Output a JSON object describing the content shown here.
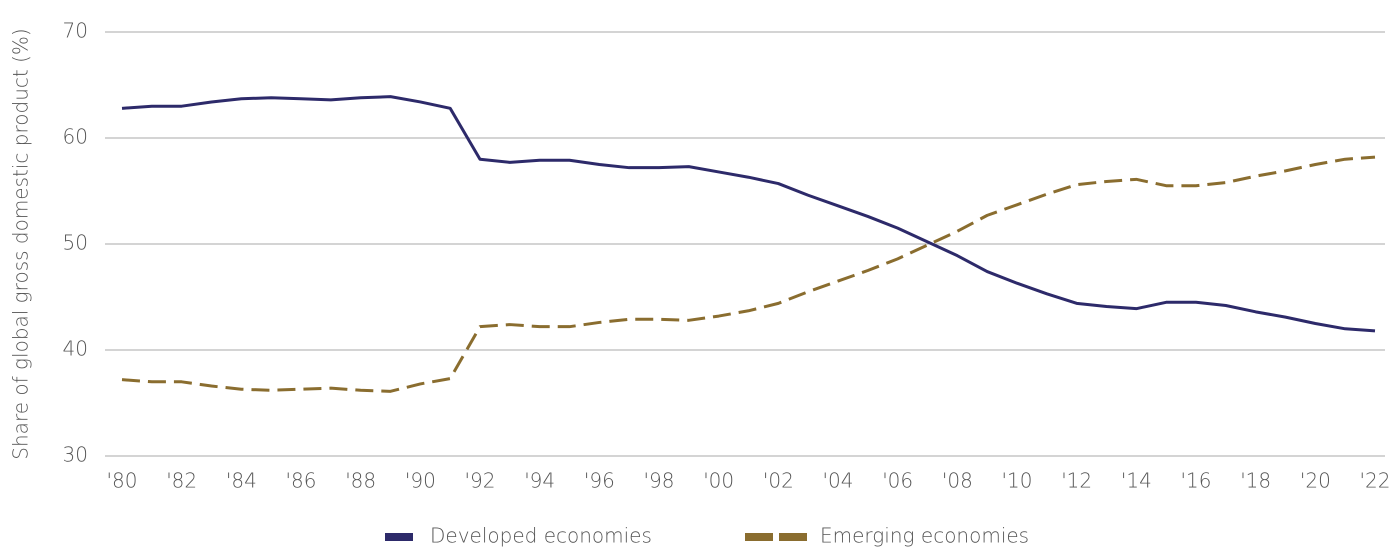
{
  "chart_data": {
    "type": "line",
    "y_label": "Share of global gross domestic product (%)",
    "x": [
      1980,
      1981,
      1982,
      1983,
      1984,
      1985,
      1986,
      1987,
      1988,
      1989,
      1990,
      1991,
      1992,
      1993,
      1994,
      1995,
      1996,
      1997,
      1998,
      1999,
      2000,
      2001,
      2002,
      2003,
      2004,
      2005,
      2006,
      2007,
      2008,
      2009,
      2010,
      2011,
      2012,
      2013,
      2014,
      2015,
      2016,
      2017,
      2018,
      2019,
      2020,
      2021,
      2022
    ],
    "series": [
      {
        "name": "Developed economies",
        "color": "#2d2a6a",
        "dash": false,
        "values": [
          62.8,
          63.0,
          63.0,
          63.4,
          63.7,
          63.8,
          63.7,
          63.6,
          63.8,
          63.9,
          63.4,
          62.8,
          58.0,
          57.7,
          57.9,
          57.9,
          57.5,
          57.2,
          57.2,
          57.3,
          56.8,
          56.3,
          55.7,
          54.6,
          53.6,
          52.6,
          51.5,
          50.2,
          48.9,
          47.4,
          46.3,
          45.3,
          44.4,
          44.1,
          43.9,
          44.5,
          44.5,
          44.2,
          43.6,
          43.1,
          42.5,
          42.0,
          41.8
        ]
      },
      {
        "name": "Emerging economies",
        "color": "#8a6d2f",
        "dash": true,
        "values": [
          37.2,
          37.0,
          37.0,
          36.6,
          36.3,
          36.2,
          36.3,
          36.4,
          36.2,
          36.1,
          36.8,
          37.3,
          42.2,
          42.4,
          42.2,
          42.2,
          42.6,
          42.9,
          42.9,
          42.8,
          43.2,
          43.7,
          44.4,
          45.5,
          46.5,
          47.5,
          48.6,
          49.9,
          51.2,
          52.7,
          53.7,
          54.7,
          55.6,
          55.9,
          56.1,
          55.5,
          55.5,
          55.8,
          56.4,
          56.9,
          57.5,
          58.0,
          58.2
        ]
      }
    ],
    "xlim": [
      1980,
      2022
    ],
    "xticks": [
      {
        "value": 1980,
        "label": "'80"
      },
      {
        "value": 1982,
        "label": "'82"
      },
      {
        "value": 1984,
        "label": "'84"
      },
      {
        "value": 1986,
        "label": "'86"
      },
      {
        "value": 1988,
        "label": "'88"
      },
      {
        "value": 1990,
        "label": "'90"
      },
      {
        "value": 1992,
        "label": "'92"
      },
      {
        "value": 1994,
        "label": "'94"
      },
      {
        "value": 1996,
        "label": "'96"
      },
      {
        "value": 1998,
        "label": "'98"
      },
      {
        "value": 2000,
        "label": "'00"
      },
      {
        "value": 2002,
        "label": "'02"
      },
      {
        "value": 2004,
        "label": "'04"
      },
      {
        "value": 2006,
        "label": "'06"
      },
      {
        "value": 2008,
        "label": "'08"
      },
      {
        "value": 2010,
        "label": "'10"
      },
      {
        "value": 2012,
        "label": "'12"
      },
      {
        "value": 2014,
        "label": "'14"
      },
      {
        "value": 2016,
        "label": "'16"
      },
      {
        "value": 2018,
        "label": "'18"
      },
      {
        "value": 2020,
        "label": "'20"
      },
      {
        "value": 2022,
        "label": "'22"
      }
    ],
    "ylim": [
      30,
      70
    ],
    "yticks": [
      30,
      40,
      50,
      60,
      70
    ],
    "grid": true
  }
}
